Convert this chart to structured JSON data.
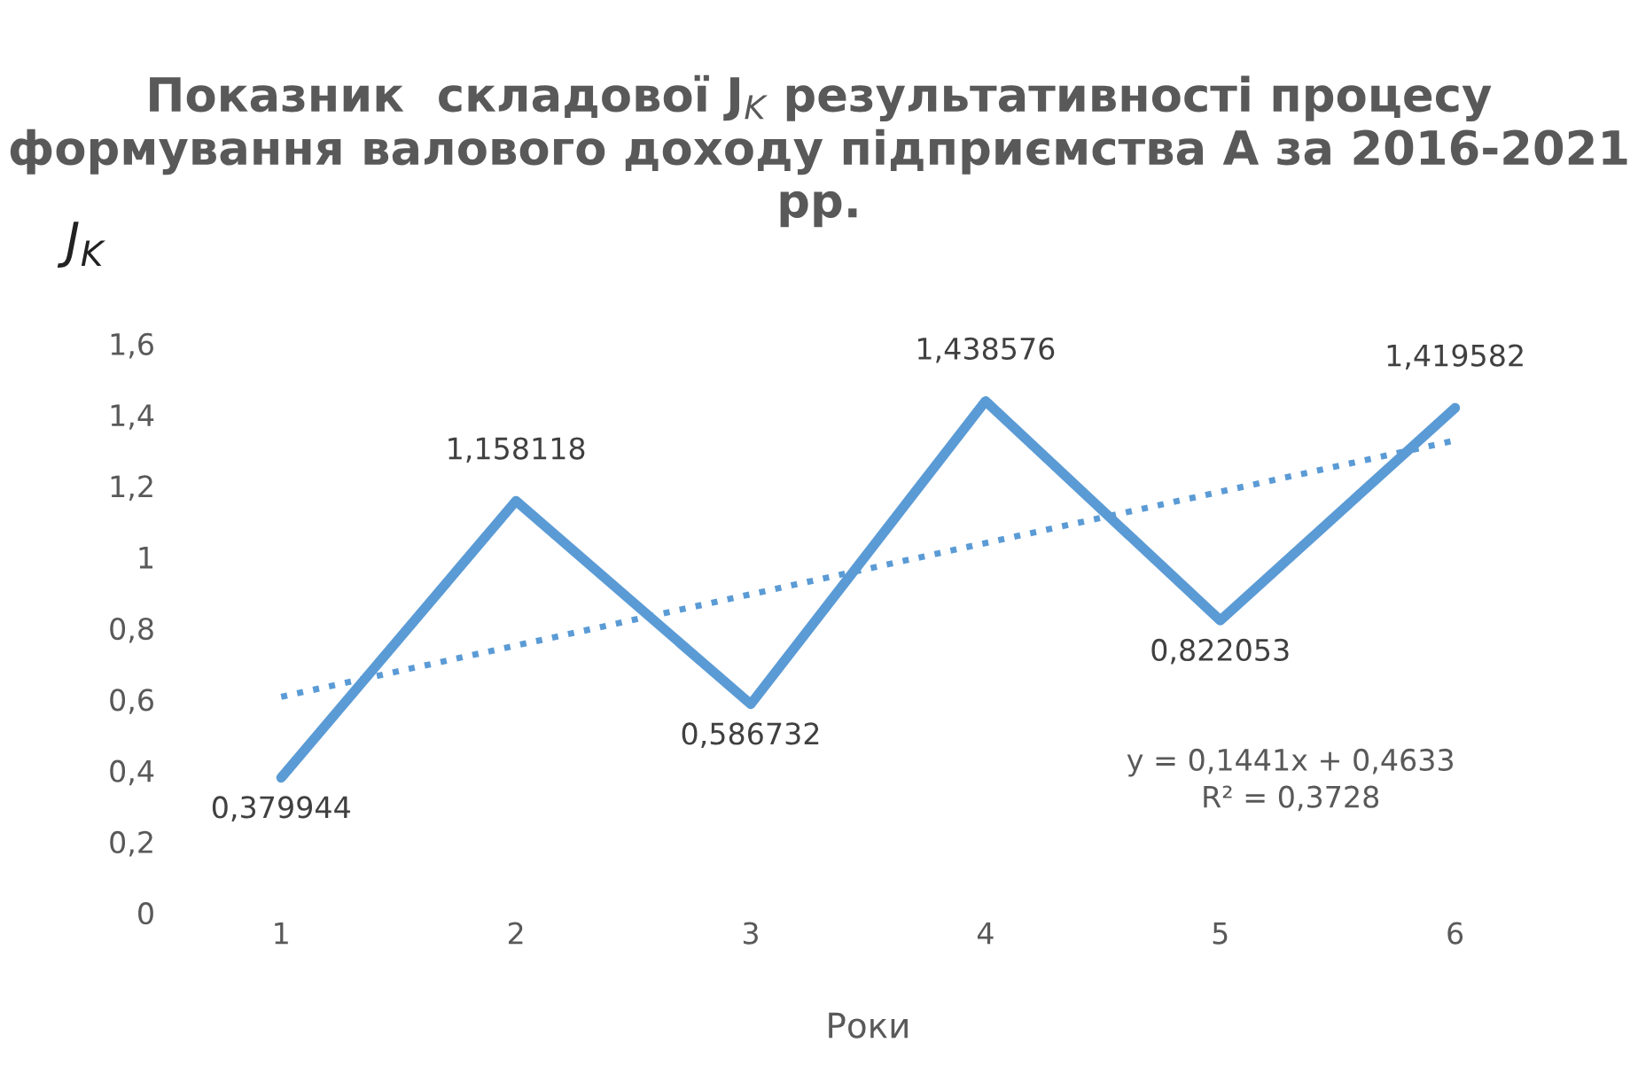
{
  "chart_data": {
    "type": "line",
    "title": "Показник  складової J$_{K}$ результативності процесу формування валового доходу підприємства А за 2016-2021 рр.",
    "ylabel": "J$_{K}$",
    "xlabel": "Роки",
    "categories": [
      "1",
      "2",
      "3",
      "4",
      "5",
      "6"
    ],
    "series": [
      {
        "color": "#5b9bd5",
        "values": [
          0.379944,
          1.158118,
          0.586732,
          1.438576,
          0.822053,
          1.419582
        ],
        "value_labels": [
          "0,379944",
          "1,158118",
          "0,586732",
          "1,438576",
          "0,822053",
          "1,419582"
        ],
        "line_style": "solid"
      },
      {
        "color": "#5b9bd5",
        "values": [
          0.6074,
          0.7515,
          0.8956,
          1.0397,
          1.1838,
          1.3279
        ],
        "line_style": "dotted"
      }
    ],
    "ylim": [
      0,
      1.6
    ],
    "yticks": [
      {
        "value": 0,
        "label": "0"
      },
      {
        "value": 0.2,
        "label": "0,2"
      },
      {
        "value": 0.4,
        "label": "0,4"
      },
      {
        "value": 0.6,
        "label": "0,6"
      },
      {
        "value": 0.8,
        "label": "0,8"
      },
      {
        "value": 1,
        "label": "1"
      },
      {
        "value": 1.2,
        "label": "1,2"
      },
      {
        "value": 1.4,
        "label": "1,4"
      },
      {
        "value": 1.6,
        "label": "1,6"
      }
    ],
    "annotations": [
      "y = 0,1441x + 0,4633",
      "R² = 0,3728"
    ],
    "grid": false,
    "legend": false
  }
}
